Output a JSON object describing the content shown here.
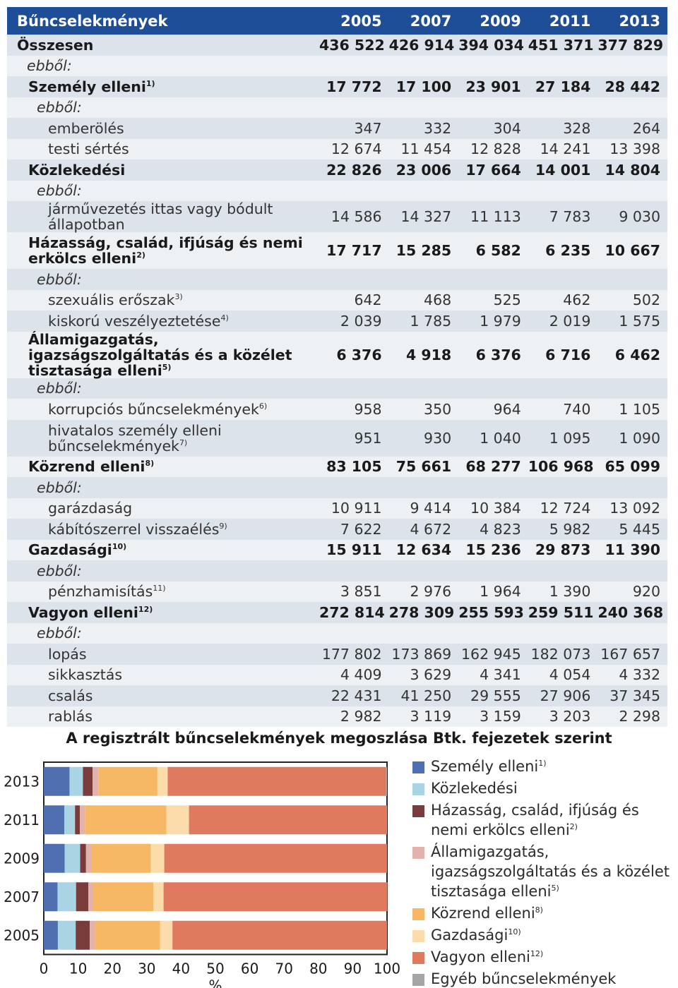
{
  "table": {
    "header": [
      "Bűncselekmények",
      "2005",
      "2007",
      "2009",
      "2011",
      "2013"
    ],
    "rows": [
      {
        "type": "total",
        "label": "Összesen",
        "sup": "",
        "values": [
          "436 522",
          "426 914",
          "394 034",
          "451 371",
          "377 829"
        ]
      },
      {
        "type": "ebbol-top",
        "label": "ebből:",
        "sup": "",
        "values": []
      },
      {
        "type": "cat",
        "label": "Személy elleni",
        "sup": "1)",
        "values": [
          "17 772",
          "17 100",
          "23 901",
          "27 184",
          "28 442"
        ]
      },
      {
        "type": "ebbol",
        "label": "ebből:",
        "sup": "",
        "values": []
      },
      {
        "type": "item",
        "label": "emberölés",
        "sup": "",
        "values": [
          "347",
          "332",
          "304",
          "328",
          "264"
        ]
      },
      {
        "type": "item",
        "label": "testi sértés",
        "sup": "",
        "values": [
          "12 674",
          "11 454",
          "12 828",
          "14 241",
          "13 398"
        ]
      },
      {
        "type": "cat",
        "label": "Közlekedési",
        "sup": "",
        "values": [
          "22 826",
          "23 006",
          "17 664",
          "14 001",
          "14 804"
        ]
      },
      {
        "type": "ebbol",
        "label": "ebből:",
        "sup": "",
        "values": []
      },
      {
        "type": "item",
        "label": "járművezetés ittas vagy bódult állapotban",
        "sup": "",
        "values": [
          "14 586",
          "14 327",
          "11 113",
          "7 783",
          "9 030"
        ]
      },
      {
        "type": "cat",
        "tall": true,
        "label": "Házasság, család, ifjúság és nemi erkölcs elleni",
        "sup": "2)",
        "values": [
          "17 717",
          "15 285",
          "6 582",
          "6 235",
          "10 667"
        ]
      },
      {
        "type": "ebbol",
        "label": "ebből:",
        "sup": "",
        "values": []
      },
      {
        "type": "item",
        "label": "szexuális erőszak",
        "sup": "3)",
        "values": [
          "642",
          "468",
          "525",
          "462",
          "502"
        ]
      },
      {
        "type": "item",
        "label": "kiskorú veszélyeztetése",
        "sup": "4)",
        "values": [
          "2 039",
          "1 785",
          "1 979",
          "2 019",
          "1 575"
        ]
      },
      {
        "type": "cat",
        "tall": true,
        "label": "Államigazgatás, igazságszolgáltatás és a közélet tisztasága elleni",
        "sup": "5)",
        "values": [
          "6 376",
          "4 918",
          "6 376",
          "6 716",
          "6 462"
        ]
      },
      {
        "type": "ebbol",
        "label": "ebből:",
        "sup": "",
        "values": []
      },
      {
        "type": "item",
        "label": "korrupciós bűncselekmények",
        "sup": "6)",
        "values": [
          "958",
          "350",
          "964",
          "740",
          "1 105"
        ]
      },
      {
        "type": "item",
        "tall": true,
        "label": "hivatalos személy elleni bűncselekmények",
        "sup": "7)",
        "values": [
          "951",
          "930",
          "1 040",
          "1 095",
          "1 090"
        ]
      },
      {
        "type": "cat",
        "label": "Közrend elleni",
        "sup": "8)",
        "values": [
          "83 105",
          "75 661",
          "68 277",
          "106 968",
          "65 099"
        ]
      },
      {
        "type": "ebbol",
        "label": "ebből:",
        "sup": "",
        "values": []
      },
      {
        "type": "item",
        "label": "garázdaság",
        "sup": "",
        "values": [
          "10 911",
          "9 414",
          "10 384",
          "12 724",
          "13 092"
        ]
      },
      {
        "type": "item",
        "label": "kábítószerrel visszaélés",
        "sup": "9)",
        "values": [
          "7 622",
          "4 672",
          "4 823",
          "5 982",
          "5 445"
        ]
      },
      {
        "type": "cat",
        "label": "Gazdasági",
        "sup": "10)",
        "values": [
          "15 911",
          "12 634",
          "15 236",
          "29 873",
          "11 390"
        ]
      },
      {
        "type": "ebbol",
        "label": "ebből:",
        "sup": "",
        "values": []
      },
      {
        "type": "item",
        "label": "pénzhamisítás",
        "sup": "11)",
        "values": [
          "3 851",
          "2 976",
          "1 964",
          "1 390",
          "920"
        ]
      },
      {
        "type": "cat",
        "label": "Vagyon elleni",
        "sup": "12)",
        "values": [
          "272 814",
          "278 309",
          "255 593",
          "259 511",
          "240 368"
        ]
      },
      {
        "type": "ebbol",
        "label": "ebből:",
        "sup": "",
        "values": []
      },
      {
        "type": "item",
        "label": "lopás",
        "sup": "",
        "values": [
          "177 802",
          "173 869",
          "162 945",
          "182 073",
          "167 657"
        ]
      },
      {
        "type": "item",
        "label": "sikkasztás",
        "sup": "",
        "values": [
          "4 409",
          "3 629",
          "4 341",
          "4 054",
          "4 332"
        ]
      },
      {
        "type": "item",
        "label": "csalás",
        "sup": "",
        "values": [
          "22 431",
          "41 250",
          "29 555",
          "27 906",
          "37 345"
        ]
      },
      {
        "type": "item",
        "label": "rablás",
        "sup": "",
        "values": [
          "2 982",
          "3 119",
          "3 159",
          "3 203",
          "2 298"
        ]
      }
    ]
  },
  "chart_data": {
    "type": "bar",
    "orientation": "horizontal",
    "stacked": true,
    "normalized": true,
    "title": "A regisztrált bűncselekmények megoszlása Btk. fejezetek szerint",
    "xlabel": "%",
    "ylabel": "",
    "xlim": [
      0,
      100
    ],
    "xticks": [
      "0",
      "10",
      "20",
      "30",
      "40",
      "50",
      "60",
      "70",
      "80",
      "90",
      "100"
    ],
    "categories": [
      "2013",
      "2011",
      "2009",
      "2007",
      "2005"
    ],
    "legend_position": "right",
    "series": [
      {
        "name": "Személy elleni",
        "sup": "1)",
        "color": "#4f6fb0",
        "values": [
          7.5,
          6.0,
          6.1,
          4.0,
          4.1
        ]
      },
      {
        "name": "Közlekedési",
        "sup": "",
        "color": "#a9d4e4",
        "values": [
          3.9,
          3.1,
          4.5,
          5.4,
          5.2
        ]
      },
      {
        "name": "Házasság, család, ifjúság és nemi erkölcs elleni",
        "sup": "2)",
        "color": "#7a3b3b",
        "values": [
          2.8,
          1.4,
          1.7,
          3.6,
          4.1
        ]
      },
      {
        "name": "Államigazgatás, igazságszolgáltatás és a közélet tisztasága elleni",
        "sup": "5)",
        "color": "#e2b3ad",
        "values": [
          1.7,
          1.5,
          1.6,
          1.2,
          1.5
        ]
      },
      {
        "name": "Közrend elleni",
        "sup": "8)",
        "color": "#f7b866",
        "values": [
          17.2,
          23.7,
          17.3,
          17.7,
          19.0
        ]
      },
      {
        "name": "Gazdasági",
        "sup": "10)",
        "color": "#fbdcaa",
        "values": [
          3.0,
          6.6,
          3.9,
          3.0,
          3.6
        ]
      },
      {
        "name": "Vagyon elleni",
        "sup": "12)",
        "color": "#e07a5f",
        "values": [
          63.6,
          57.5,
          64.9,
          65.2,
          62.5
        ]
      },
      {
        "name": "Egyéb bűncselekmények",
        "sup": "",
        "color": "#a6a6a6",
        "values": [
          0.3,
          0.2,
          0.0,
          0.0,
          0.0
        ]
      }
    ]
  }
}
